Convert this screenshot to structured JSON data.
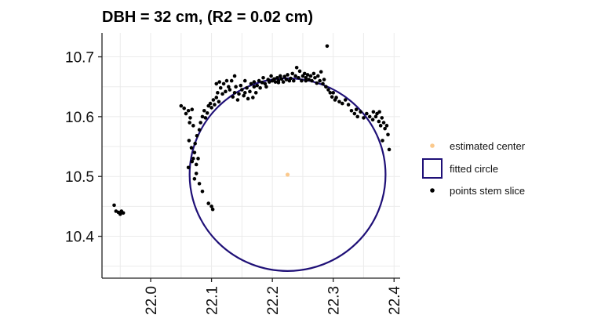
{
  "chart_data": {
    "type": "scatter",
    "title": "DBH = 32 cm, (R2 = 0.02 cm)",
    "xlim": [
      21.92,
      22.41
    ],
    "ylim": [
      10.33,
      10.74
    ],
    "x_ticks": [
      22.0,
      22.1,
      22.2,
      22.3,
      22.4
    ],
    "x_tick_labels": [
      "22.0",
      "22.1",
      "22.2",
      "22.3",
      "22.4"
    ],
    "y_ticks": [
      10.4,
      10.5,
      10.6,
      10.7
    ],
    "y_tick_labels": [
      "10.4",
      "10.5",
      "10.6",
      "10.7"
    ],
    "grid": true,
    "legend_position": "right",
    "colors": {
      "center": "#fbc98c",
      "circle": "#1f1077",
      "points": "#000000"
    },
    "legend": [
      {
        "label": "estimated center",
        "kind": "dot",
        "color": "#fbc98c"
      },
      {
        "label": "fitted circle",
        "kind": "box",
        "color": "#1f1077"
      },
      {
        "label": "points stem slice",
        "kind": "dot",
        "color": "#000000"
      }
    ],
    "estimated_center": {
      "x": 22.225,
      "y": 10.503
    },
    "fitted_circle": {
      "cx": 22.225,
      "cy": 10.503,
      "r": 0.161
    },
    "points": [
      [
        21.94,
        10.452
      ],
      [
        21.943,
        10.442
      ],
      [
        21.947,
        10.44
      ],
      [
        21.95,
        10.437
      ],
      [
        21.952,
        10.442
      ],
      [
        21.955,
        10.439
      ],
      [
        22.05,
        10.618
      ],
      [
        22.055,
        10.614
      ],
      [
        22.058,
        10.605
      ],
      [
        22.062,
        10.61
      ],
      [
        22.065,
        10.598
      ],
      [
        22.068,
        10.612
      ],
      [
        22.064,
        10.59
      ],
      [
        22.07,
        10.585
      ],
      [
        22.063,
        10.56
      ],
      [
        22.067,
        10.548
      ],
      [
        22.072,
        10.54
      ],
      [
        22.07,
        10.53
      ],
      [
        22.068,
        10.525
      ],
      [
        22.075,
        10.52
      ],
      [
        22.078,
        10.53
      ],
      [
        22.075,
        10.505
      ],
      [
        22.072,
        10.496
      ],
      [
        22.08,
        10.488
      ],
      [
        22.062,
        10.515
      ],
      [
        22.085,
        10.475
      ],
      [
        22.095,
        10.455
      ],
      [
        22.1,
        10.45
      ],
      [
        22.102,
        10.445
      ],
      [
        22.073,
        10.555
      ],
      [
        22.076,
        10.568
      ],
      [
        22.08,
        10.578
      ],
      [
        22.082,
        10.59
      ],
      [
        22.085,
        10.6
      ],
      [
        22.088,
        10.61
      ],
      [
        22.09,
        10.598
      ],
      [
        22.093,
        10.606
      ],
      [
        22.095,
        10.618
      ],
      [
        22.098,
        10.622
      ],
      [
        22.1,
        10.615
      ],
      [
        22.103,
        10.628
      ],
      [
        22.105,
        10.62
      ],
      [
        22.108,
        10.632
      ],
      [
        22.11,
        10.64
      ],
      [
        22.112,
        10.625
      ],
      [
        22.115,
        10.648
      ],
      [
        22.118,
        10.638
      ],
      [
        22.12,
        10.655
      ],
      [
        22.123,
        10.642
      ],
      [
        22.125,
        10.66
      ],
      [
        22.128,
        10.65
      ],
      [
        22.13,
        10.645
      ],
      [
        22.133,
        10.66
      ],
      [
        22.135,
        10.633
      ],
      [
        22.138,
        10.64
      ],
      [
        22.14,
        10.65
      ],
      [
        22.143,
        10.628
      ],
      [
        22.145,
        10.638
      ],
      [
        22.148,
        10.652
      ],
      [
        22.15,
        10.645
      ],
      [
        22.153,
        10.635
      ],
      [
        22.155,
        10.64
      ],
      [
        22.158,
        10.648
      ],
      [
        22.16,
        10.63
      ],
      [
        22.163,
        10.642
      ],
      [
        22.165,
        10.655
      ],
      [
        22.168,
        10.632
      ],
      [
        22.17,
        10.65
      ],
      [
        22.173,
        10.64
      ],
      [
        22.175,
        10.652
      ],
      [
        22.178,
        10.66
      ],
      [
        22.18,
        10.648
      ],
      [
        22.183,
        10.657
      ],
      [
        22.185,
        10.665
      ],
      [
        22.188,
        10.655
      ],
      [
        22.19,
        10.65
      ],
      [
        22.193,
        10.662
      ],
      [
        22.195,
        10.658
      ],
      [
        22.198,
        10.668
      ],
      [
        22.2,
        10.66
      ],
      [
        22.203,
        10.663
      ],
      [
        22.205,
        10.658
      ],
      [
        22.208,
        10.665
      ],
      [
        22.21,
        10.66
      ],
      [
        22.213,
        10.668
      ],
      [
        22.215,
        10.663
      ],
      [
        22.218,
        10.658
      ],
      [
        22.22,
        10.667
      ],
      [
        22.223,
        10.662
      ],
      [
        22.225,
        10.67
      ],
      [
        22.228,
        10.66
      ],
      [
        22.23,
        10.664
      ],
      [
        22.233,
        10.672
      ],
      [
        22.235,
        10.66
      ],
      [
        22.238,
        10.668
      ],
      [
        22.24,
        10.682
      ],
      [
        22.243,
        10.665
      ],
      [
        22.245,
        10.676
      ],
      [
        22.248,
        10.66
      ],
      [
        22.25,
        10.668
      ],
      [
        22.253,
        10.672
      ],
      [
        22.255,
        10.665
      ],
      [
        22.258,
        10.67
      ],
      [
        22.26,
        10.662
      ],
      [
        22.263,
        10.668
      ],
      [
        22.265,
        10.66
      ],
      [
        22.268,
        10.672
      ],
      [
        22.27,
        10.665
      ],
      [
        22.273,
        10.656
      ],
      [
        22.275,
        10.668
      ],
      [
        22.278,
        10.66
      ],
      [
        22.28,
        10.675
      ],
      [
        22.283,
        10.655
      ],
      [
        22.285,
        10.662
      ],
      [
        22.29,
        10.718
      ],
      [
        22.288,
        10.65
      ],
      [
        22.292,
        10.645
      ],
      [
        22.295,
        10.64
      ],
      [
        22.298,
        10.633
      ],
      [
        22.3,
        10.64
      ],
      [
        22.303,
        10.628
      ],
      [
        22.305,
        10.632
      ],
      [
        22.31,
        10.625
      ],
      [
        22.315,
        10.622
      ],
      [
        22.32,
        10.628
      ],
      [
        22.325,
        10.62
      ],
      [
        22.33,
        10.61
      ],
      [
        22.335,
        10.605
      ],
      [
        22.338,
        10.612
      ],
      [
        22.34,
        10.6
      ],
      [
        22.345,
        10.608
      ],
      [
        22.35,
        10.598
      ],
      [
        22.355,
        10.605
      ],
      [
        22.36,
        10.6
      ],
      [
        22.365,
        10.595
      ],
      [
        22.37,
        10.6
      ],
      [
        22.375,
        10.592
      ],
      [
        22.378,
        10.585
      ],
      [
        22.38,
        10.598
      ],
      [
        22.383,
        10.59
      ],
      [
        22.385,
        10.58
      ],
      [
        22.388,
        10.585
      ],
      [
        22.39,
        10.57
      ],
      [
        22.392,
        10.545
      ],
      [
        22.381,
        10.56
      ],
      [
        22.376,
        10.608
      ],
      [
        22.372,
        10.605
      ],
      [
        22.366,
        10.608
      ],
      [
        22.108,
        10.655
      ],
      [
        22.113,
        10.658
      ],
      [
        22.138,
        10.668
      ],
      [
        22.155,
        10.66
      ],
      [
        22.17,
        10.658
      ],
      [
        22.21,
        10.657
      ],
      [
        22.255,
        10.66
      ]
    ]
  }
}
